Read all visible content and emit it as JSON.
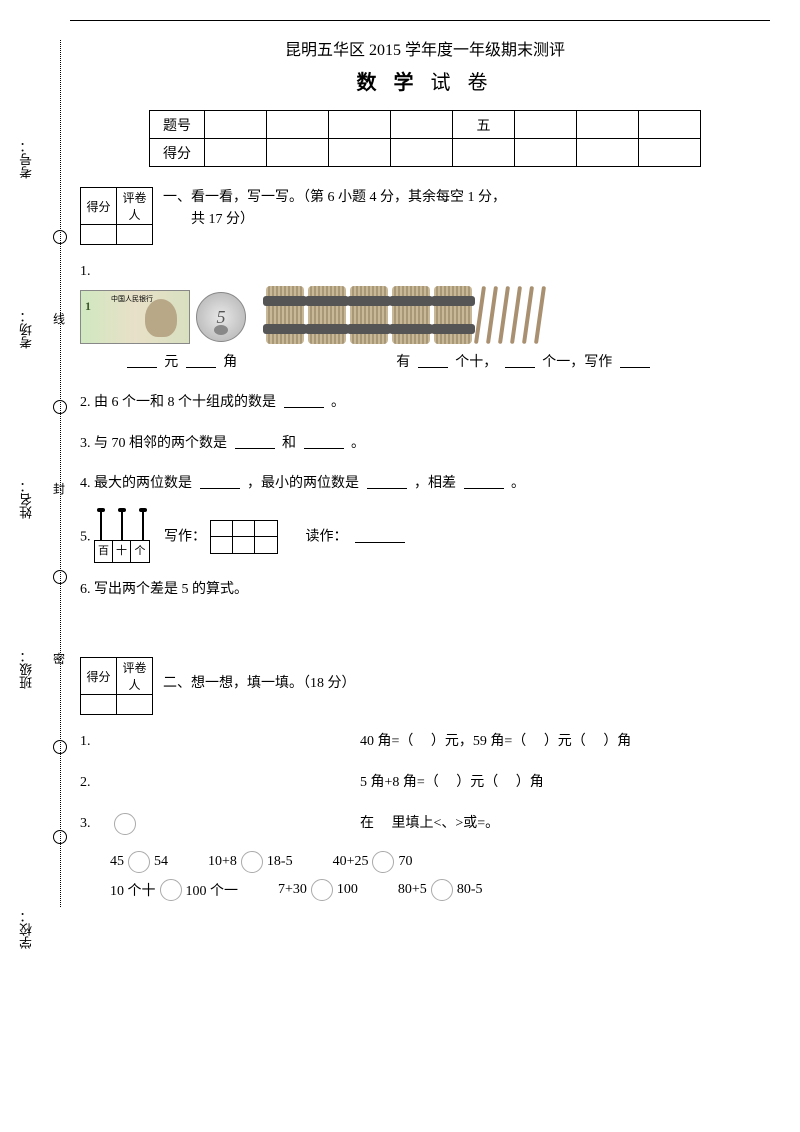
{
  "header": {
    "main_title": "昆明五华区 2015 学年度一年级期末测评",
    "subject": "数 学",
    "paper_word": "试 卷"
  },
  "score_table": {
    "row_labels": [
      "题号",
      "得分"
    ],
    "visible_col_header": "五",
    "num_cols": 8
  },
  "mini_score": {
    "col1": "得分",
    "col2": "评卷人"
  },
  "side": {
    "labels": [
      "考号：",
      "考场：",
      "姓名：",
      "班级：",
      "学校："
    ],
    "chars": [
      "线",
      "封",
      "密"
    ]
  },
  "section1": {
    "title_prefix": "一、看一看，写一写。（第 6 小题 4 分，其余每空 1 分，",
    "title_line2": "共 17 分）",
    "q1": {
      "num": "1.",
      "yuan": "元",
      "jiao": "角",
      "you": "有",
      "geshi": "个十，",
      "geyi": "个一，写作",
      "bundle_tens": 5,
      "loose_sticks": 6,
      "coin_value": "5"
    },
    "q2": {
      "num": "2.",
      "text_a": "由 6 个一和 8 个十组成的数是",
      "suffix": "。"
    },
    "q3": {
      "num": "3.",
      "text_a": "与 70 相邻的两个数是",
      "and": "和",
      "suffix": "。"
    },
    "q4": {
      "num": "4.",
      "text_a": "最大的两位数是",
      "text_b": "，最小的两位数是",
      "text_c": "，相差",
      "suffix": "。"
    },
    "q5": {
      "num": "5.",
      "write": "写作：",
      "read": "读作：",
      "cols": [
        "百",
        "十",
        "个"
      ]
    },
    "q6": {
      "num": "6.",
      "text": "写出两个差是 5 的算式。"
    }
  },
  "section2": {
    "title": "二、想一想，填一填。（18 分）",
    "q1": {
      "num": "1.",
      "a": "40 角=（",
      "b": "）元，59 角=（",
      "c": "）元（",
      "d": "）角"
    },
    "q2": {
      "num": "2.",
      "a": "5 角+8 角=（",
      "b": "）元（",
      "c": "）角"
    },
    "q3": {
      "num": "3.",
      "text": "在",
      "suffix": "里填上<、>或=。"
    },
    "cmp_rows": [
      [
        {
          "left": "45",
          "right": "54"
        },
        {
          "left": "10+8",
          "right": "18-5"
        },
        {
          "left": "40+25",
          "right": "70"
        }
      ],
      [
        {
          "left": "10 个十",
          "right": "100 个一"
        },
        {
          "left": "7+30",
          "right": "100"
        },
        {
          "left": "80+5",
          "right": "80-5"
        }
      ]
    ]
  },
  "style": {
    "page_bg": "#ffffff",
    "text_color": "#000000"
  }
}
